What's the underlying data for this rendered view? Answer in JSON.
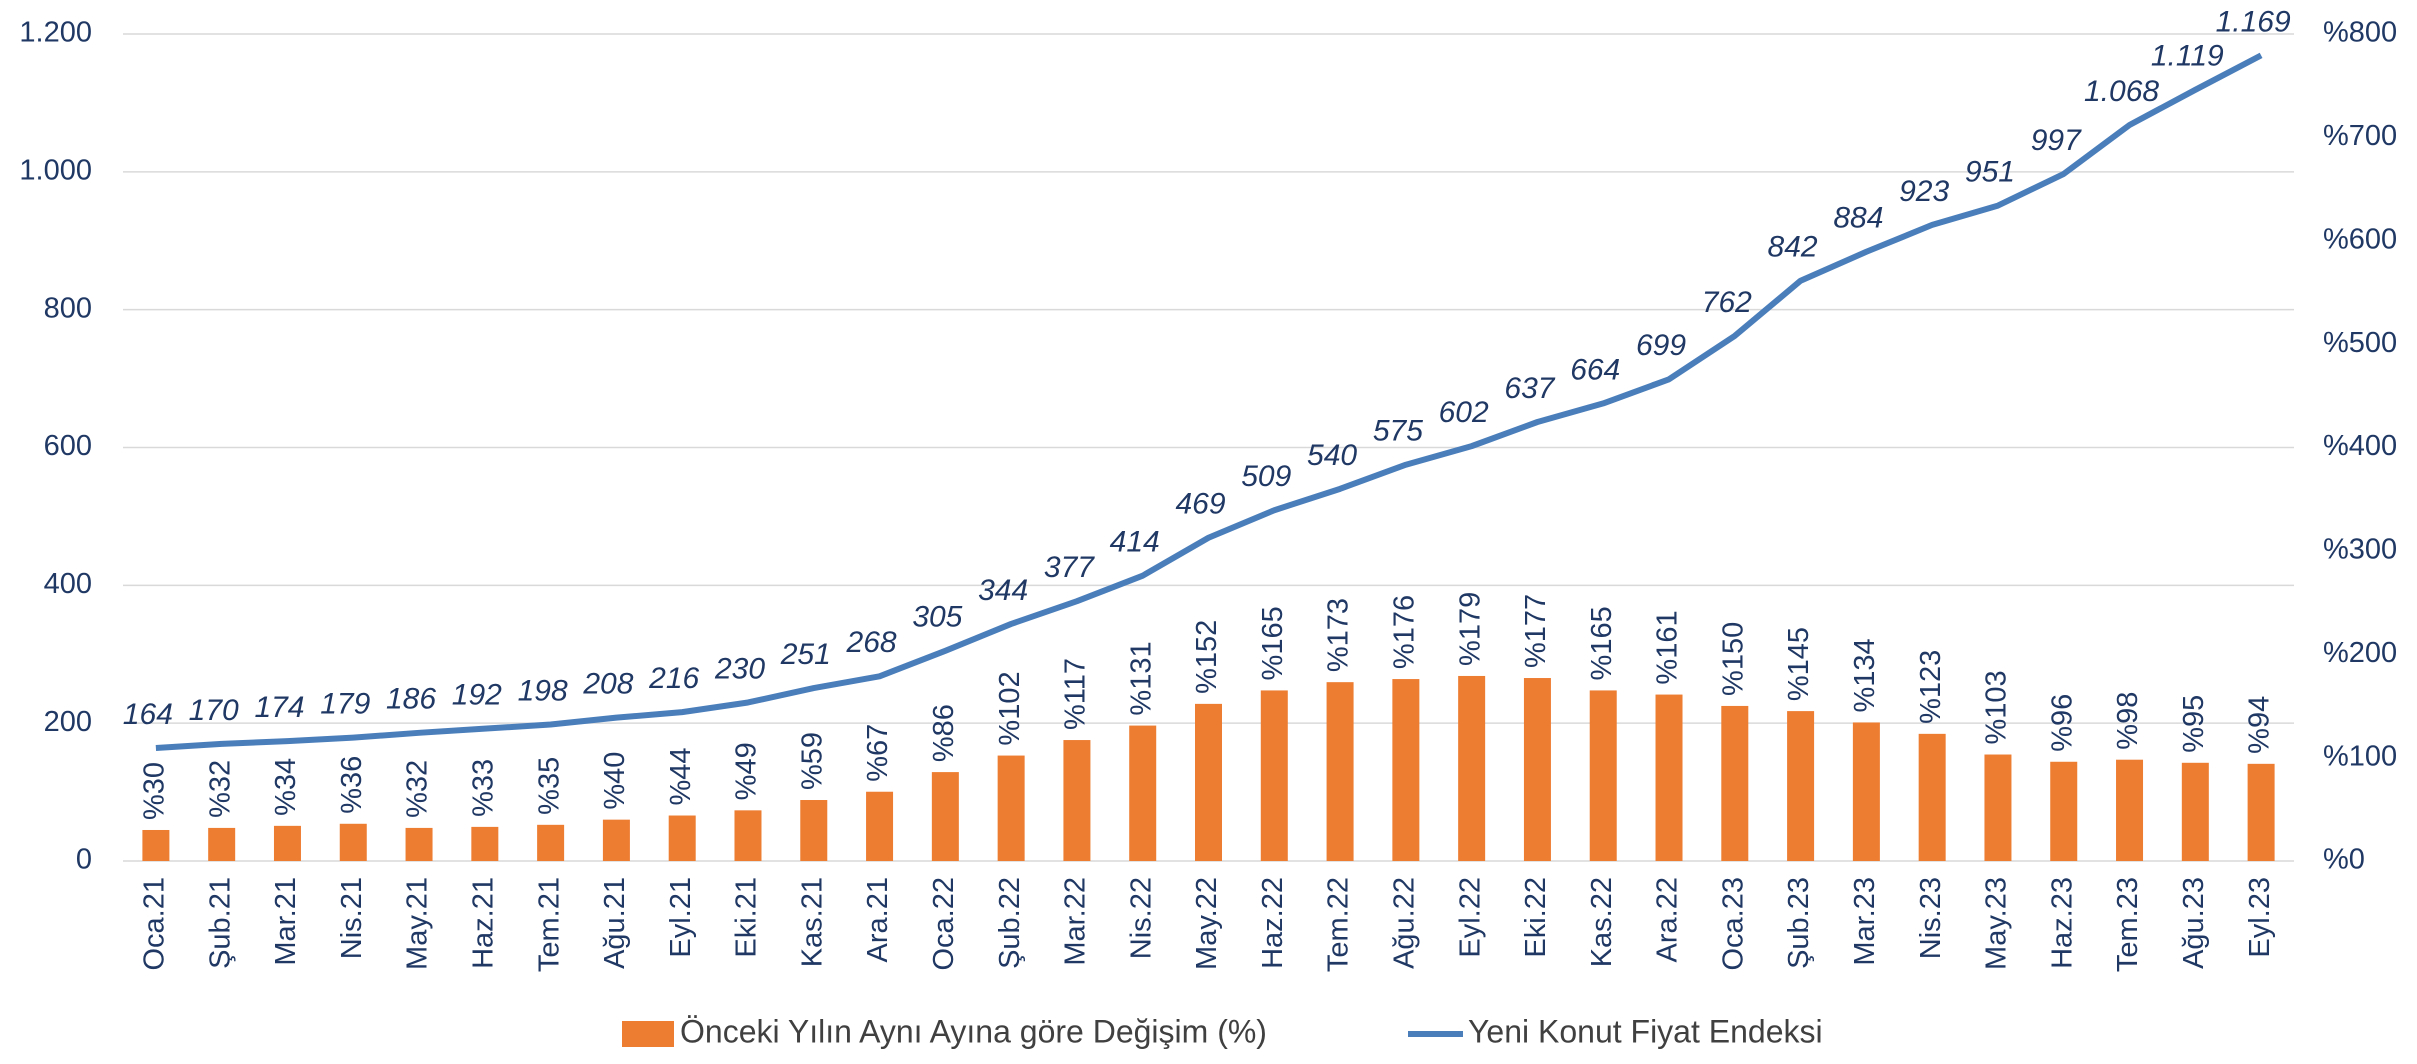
{
  "chart_data": {
    "type": "bar-line",
    "categories": [
      "Oca.21",
      "Şub.21",
      "Mar.21",
      "Nis.21",
      "May.21",
      "Haz.21",
      "Tem.21",
      "Ağu.21",
      "Eyl.21",
      "Eki.21",
      "Kas.21",
      "Ara.21",
      "Oca.22",
      "Şub.22",
      "Mar.22",
      "Nis.22",
      "May.22",
      "Haz.22",
      "Tem.22",
      "Ağu.22",
      "Eyl.22",
      "Eki.22",
      "Kas.22",
      "Ara.22",
      "Oca.23",
      "Şub.23",
      "Mar.23",
      "Nis.23",
      "May.23",
      "Haz.23",
      "Tem.23",
      "Ağu.23",
      "Eyl.23"
    ],
    "series": [
      {
        "name": "Önceki Yılın Aynı Ayına göre Değişim (%)",
        "type": "bar",
        "axis": "y2",
        "color": "#ed7d31",
        "values": [
          30,
          32,
          34,
          36,
          32,
          33,
          35,
          40,
          44,
          49,
          59,
          67,
          86,
          102,
          117,
          131,
          152,
          165,
          173,
          176,
          179,
          177,
          165,
          161,
          150,
          145,
          134,
          123,
          103,
          96,
          98,
          95,
          94
        ],
        "value_labels": [
          "%30",
          "%32",
          "%34",
          "%36",
          "%32",
          "%33",
          "%35",
          "%40",
          "%44",
          "%49",
          "%59",
          "%67",
          "%86",
          "%102",
          "%117",
          "%131",
          "%152",
          "%165",
          "%173",
          "%176",
          "%179",
          "%177",
          "%165",
          "%161",
          "%150",
          "%145",
          "%134",
          "%123",
          "%103",
          "%96",
          "%98",
          "%95",
          "%94"
        ]
      },
      {
        "name": "Yeni Konut Fiyat Endeksi",
        "type": "line",
        "color": "#4a7ebb",
        "values": [
          164,
          170,
          174,
          179,
          186,
          192,
          198,
          208,
          216,
          230,
          251,
          268,
          305,
          344,
          377,
          414,
          469,
          509,
          540,
          575,
          602,
          637,
          664,
          699,
          762,
          842,
          884,
          923,
          951,
          997,
          1068,
          1119,
          1169
        ],
        "value_labels": [
          "164",
          "170",
          "174",
          "179",
          "186",
          "192",
          "198",
          "208",
          "216",
          "230",
          "251",
          "268",
          "305",
          "344",
          "377",
          "414",
          "469",
          "509",
          "540",
          "575",
          "602",
          "637",
          "664",
          "699",
          "762",
          "842",
          "884",
          "923",
          "951",
          "997",
          "1.068",
          "1.119",
          "1.169"
        ]
      }
    ],
    "ylim": [
      0,
      1200
    ],
    "yticks": [
      0,
      200,
      400,
      600,
      800,
      {
        "value": 1000,
        "label": "1.000"
      },
      {
        "value": 1200,
        "label": "1.200"
      }
    ],
    "y2lim": [
      0,
      800
    ],
    "y2ticks": [
      {
        "value": 0,
        "label": "%0"
      },
      {
        "value": 100,
        "label": "%100"
      },
      {
        "value": 200,
        "label": "%200"
      },
      {
        "value": 300,
        "label": "%300"
      },
      {
        "value": 400,
        "label": "%400"
      },
      {
        "value": 500,
        "label": "%500"
      },
      {
        "value": 600,
        "label": "%600"
      },
      {
        "value": 700,
        "label": "%700"
      },
      {
        "value": 800,
        "label": "%800"
      }
    ],
    "grid": true,
    "legend": "bottom"
  }
}
